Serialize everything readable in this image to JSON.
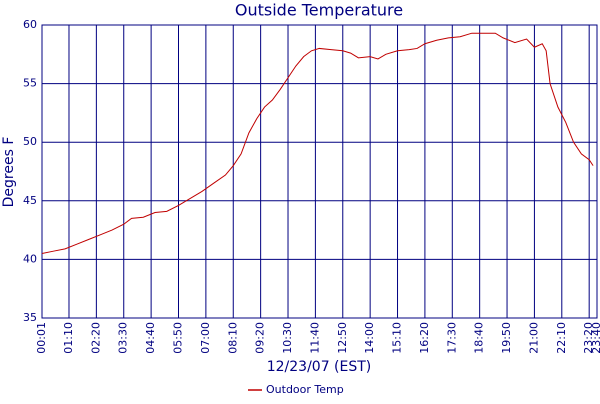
{
  "chart_data": {
    "type": "line",
    "title": "Outside Temperature",
    "xlabel": "12/23/07 (EST)",
    "ylabel": "Degrees F",
    "x": [
      1,
      30,
      60,
      90,
      120,
      150,
      180,
      210,
      230,
      260,
      290,
      320,
      350,
      380,
      410,
      440,
      470,
      490,
      510,
      530,
      550,
      570,
      590,
      610,
      630,
      650,
      670,
      690,
      710,
      740,
      770,
      790,
      810,
      840,
      860,
      880,
      910,
      940,
      960,
      980,
      1010,
      1040,
      1070,
      1100,
      1130,
      1160,
      1180,
      1210,
      1240,
      1260,
      1280,
      1290,
      1300,
      1320,
      1340,
      1360,
      1380,
      1400,
      1410
    ],
    "series": [
      {
        "name": "Outdoor Temp",
        "color": "#c00000",
        "values": [
          40.5,
          40.7,
          40.9,
          41.3,
          41.7,
          42.1,
          42.5,
          43.0,
          43.5,
          43.6,
          44.0,
          44.1,
          44.6,
          45.2,
          45.8,
          46.5,
          47.2,
          48.0,
          49.0,
          50.8,
          52.0,
          53.0,
          53.6,
          54.5,
          55.5,
          56.5,
          57.3,
          57.8,
          58.0,
          57.9,
          57.8,
          57.6,
          57.2,
          57.3,
          57.1,
          57.5,
          57.8,
          57.9,
          58.0,
          58.4,
          58.7,
          58.9,
          59.0,
          59.3,
          59.3,
          59.3,
          58.9,
          58.5,
          58.8,
          58.1,
          58.4,
          57.8,
          55.0,
          53.0,
          51.7,
          50.0,
          49.0,
          48.5,
          48.0
        ]
      }
    ],
    "xlim": [
      1,
      1420
    ],
    "xticks": [
      {
        "value": 1,
        "label": "00:01"
      },
      {
        "value": 70,
        "label": "01:10"
      },
      {
        "value": 140,
        "label": "02:20"
      },
      {
        "value": 210,
        "label": "03:30"
      },
      {
        "value": 280,
        "label": "04:40"
      },
      {
        "value": 350,
        "label": "05:50"
      },
      {
        "value": 420,
        "label": "07:00"
      },
      {
        "value": 490,
        "label": "08:10"
      },
      {
        "value": 560,
        "label": "09:20"
      },
      {
        "value": 630,
        "label": "10:30"
      },
      {
        "value": 700,
        "label": "11:40"
      },
      {
        "value": 770,
        "label": "12:50"
      },
      {
        "value": 840,
        "label": "14:00"
      },
      {
        "value": 910,
        "label": "15:10"
      },
      {
        "value": 980,
        "label": "16:20"
      },
      {
        "value": 1050,
        "label": "17:30"
      },
      {
        "value": 1120,
        "label": "18:40"
      },
      {
        "value": 1190,
        "label": "19:50"
      },
      {
        "value": 1260,
        "label": "21:00"
      },
      {
        "value": 1330,
        "label": "22:10"
      },
      {
        "value": 1400,
        "label": "23:20"
      },
      {
        "value": 1420,
        "label": "23:40"
      }
    ],
    "ylim": [
      35,
      60
    ],
    "yticks": [
      35,
      40,
      45,
      50,
      55,
      60
    ],
    "grid": true,
    "legend": "bottom"
  }
}
